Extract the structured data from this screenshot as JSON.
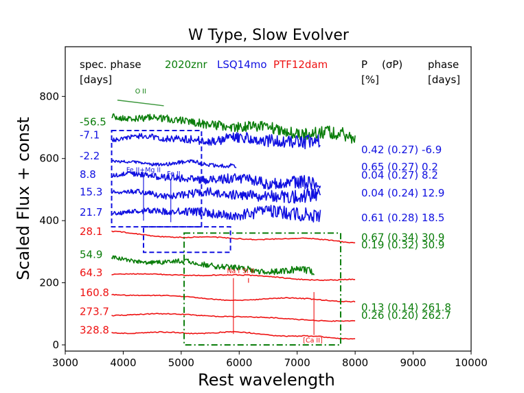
{
  "colors": {
    "green": "#0a7d0a",
    "blue": "#1010e0",
    "red": "#ee1111",
    "black": "#000000"
  },
  "chart_data": {
    "type": "line",
    "title": "W Type, Slow Evolver",
    "xlabel": "Rest wavelength",
    "ylabel": "Scaled Flux + const",
    "xlim": [
      3000,
      10000
    ],
    "ylim": [
      -20,
      960
    ],
    "xticks": [
      3000,
      4000,
      5000,
      6000,
      7000,
      8000,
      9000,
      10000
    ],
    "yticks": [
      0,
      200,
      400,
      600,
      800
    ],
    "header": {
      "spec_phase": "spec. phase",
      "days_unit": "[days]",
      "legend": [
        {
          "name": "2020znr",
          "color": "green"
        },
        {
          "name": "LSQ14mo",
          "color": "blue"
        },
        {
          "name": "PTF12dam",
          "color": "red"
        }
      ],
      "pol": "P",
      "sigma": "(σP)",
      "pct": "[%]",
      "phase": "phase",
      "phase_unit": "[days]"
    },
    "series": [
      {
        "name": "2020znr",
        "phase": "-56.5",
        "color": "green",
        "x_start": 3800,
        "x_end": 8000,
        "level": 740,
        "slope": -70,
        "noise": 9,
        "noise_growth": 1.5,
        "label_y": 718,
        "seed": 11
      },
      {
        "name": "LSQ14mo",
        "phase": "-7.1",
        "color": "blue",
        "x_start": 3800,
        "x_end": 7400,
        "level": 667,
        "slope": -10,
        "noise": 6,
        "noise_growth": 3,
        "label_y": 676,
        "seed": 23
      },
      {
        "name": "LSQ14mo",
        "phase": "-2.2",
        "color": "blue",
        "x_start": 3800,
        "x_end": 5950,
        "level": 592,
        "slope": -15,
        "noise": 4,
        "noise_growth": 1,
        "label_y": 608,
        "seed": 37
      },
      {
        "name": "LSQ14mo",
        "phase": "8.8",
        "color": "blue",
        "x_start": 3800,
        "x_end": 7400,
        "level": 548,
        "slope": -30,
        "noise": 6,
        "noise_growth": 3,
        "label_y": 548,
        "seed": 41
      },
      {
        "name": "LSQ14mo",
        "phase": "15.3",
        "color": "blue",
        "x_start": 3800,
        "x_end": 7400,
        "level": 490,
        "slope": -10,
        "noise": 6,
        "noise_growth": 3,
        "label_y": 492,
        "seed": 53
      },
      {
        "name": "LSQ14mo",
        "phase": "21.7",
        "color": "blue",
        "x_start": 3800,
        "x_end": 7400,
        "level": 430,
        "slope": -10,
        "noise": 6,
        "noise_growth": 3,
        "label_y": 427,
        "seed": 67
      },
      {
        "name": "PTF12dam",
        "phase": "28.1",
        "color": "red",
        "x_start": 3800,
        "x_end": 8000,
        "level": 360,
        "slope": -30,
        "noise": 1.5,
        "noise_growth": 0,
        "label_y": 365,
        "seed": 71
      },
      {
        "name": "2020znr",
        "phase": "54.9",
        "color": "green",
        "x_start": 3800,
        "x_end": 7300,
        "level": 280,
        "slope": -50,
        "noise": 6,
        "noise_growth": 1,
        "label_y": 291,
        "seed": 83
      },
      {
        "name": "PTF12dam",
        "phase": "64.3",
        "color": "red",
        "x_start": 3800,
        "x_end": 8000,
        "level": 228,
        "slope": -15,
        "noise": 1.5,
        "noise_growth": 0,
        "label_y": 232,
        "seed": 97
      },
      {
        "name": "PTF12dam",
        "phase": "160.8",
        "color": "red",
        "x_start": 3800,
        "x_end": 8000,
        "level": 160,
        "slope": -20,
        "noise": 1.5,
        "noise_growth": 0,
        "label_y": 168,
        "seed": 101
      },
      {
        "name": "PTF12dam",
        "phase": "273.7",
        "color": "red",
        "x_start": 3800,
        "x_end": 8000,
        "level": 100,
        "slope": -20,
        "noise": 1.5,
        "noise_growth": 0,
        "label_y": 107,
        "seed": 113
      },
      {
        "name": "PTF12dam",
        "phase": "328.8",
        "color": "red",
        "x_start": 3800,
        "x_end": 8000,
        "level": 45,
        "slope": -20,
        "noise": 1.5,
        "noise_growth": 0,
        "label_y": 47,
        "seed": 127
      }
    ],
    "polarization": [
      {
        "text": "0.42 (0.27) -6.9",
        "color": "blue",
        "y": 628
      },
      {
        "text": "0.65 (0.27) 0.2",
        "color": "blue",
        "y": 573
      },
      {
        "text": "0.04 (0.27) 8.2",
        "color": "blue",
        "y": 546
      },
      {
        "text": "0.04 (0.24) 12.9",
        "color": "blue",
        "y": 489
      },
      {
        "text": "0.61 (0.28) 18.5",
        "color": "blue",
        "y": 409
      },
      {
        "text": "0.67 (0.34) 30.9",
        "color": "green",
        "y": 346
      },
      {
        "text": "0.19 (0.32) 30.9",
        "color": "green",
        "y": 322
      },
      {
        "text": "0.13 (0.14) 261.8",
        "color": "green",
        "y": 120
      },
      {
        "text": "0.26 (0.20) 262.7",
        "color": "green",
        "y": 95
      }
    ],
    "line_ids": [
      {
        "text": "O II",
        "color": "green",
        "x": 4300,
        "y": 810,
        "seg": [
          3900,
          4700,
          788,
          770
        ]
      },
      {
        "text": "Fe II+Mg II",
        "color": "blue",
        "x": 4350,
        "y": 556,
        "seg": [
          4350,
          4350,
          540,
          400
        ]
      },
      {
        "text": "Fe II",
        "color": "blue",
        "x": 4870,
        "y": 544,
        "seg": [
          4820,
          4820,
          530,
          395
        ]
      },
      {
        "text": "Na I",
        "color": "red",
        "x": 5900,
        "y": 231,
        "seg": [
          5900,
          5900,
          215,
          35
        ]
      },
      {
        "text": "Si II",
        "color": "red",
        "x": 6160,
        "y": 231,
        "seg": [
          6160,
          6160,
          215,
          200
        ]
      },
      {
        "text": "[Ca II]",
        "color": "red",
        "x": 7270,
        "y": 8,
        "seg": [
          7290,
          7290,
          170,
          32
        ]
      }
    ],
    "boxes": [
      {
        "color": "blue",
        "style": "dashed",
        "x0": 3800,
        "x1": 5350,
        "y0": 380,
        "y1": 690
      },
      {
        "color": "blue",
        "style": "dashed",
        "x0": 4350,
        "x1": 5850,
        "y0": 298,
        "y1": 380
      },
      {
        "color": "green",
        "style": "dashdot",
        "x0": 5050,
        "x1": 7750,
        "y0": 0,
        "y1": 360
      }
    ]
  }
}
